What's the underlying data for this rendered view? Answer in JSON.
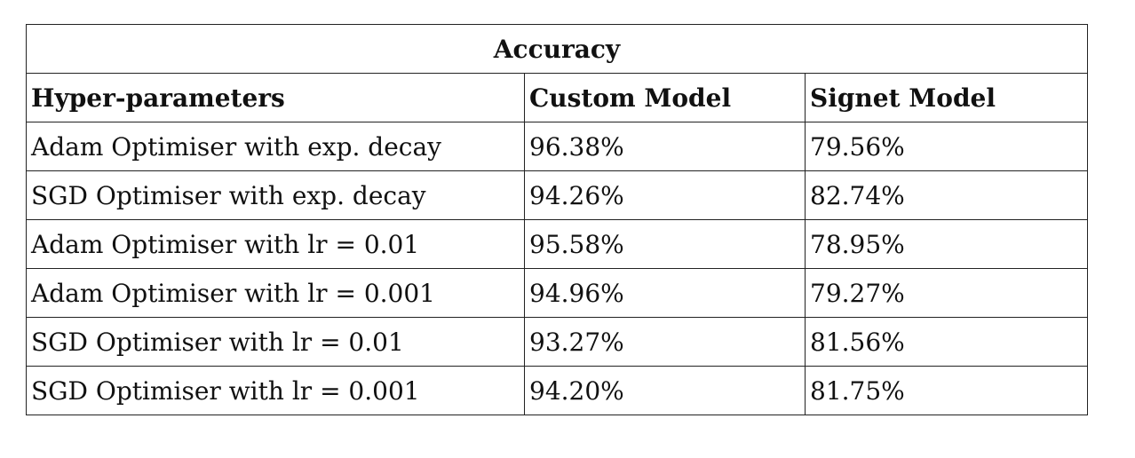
{
  "table": {
    "caption": "Accuracy",
    "headers": [
      "Hyper-parameters",
      "Custom Model",
      "Signet Model"
    ],
    "rows": [
      [
        "Adam Optimiser with exp. decay",
        "96.38%",
        "79.56%"
      ],
      [
        "SGD Optimiser with exp. decay",
        "94.26%",
        "82.74%"
      ],
      [
        "Adam Optimiser with lr = 0.01",
        "95.58%",
        "78.95%"
      ],
      [
        "Adam Optimiser with lr = 0.001",
        "94.96%",
        "79.27%"
      ],
      [
        "SGD Optimiser with lr = 0.01",
        "93.27%",
        "81.56%"
      ],
      [
        "SGD Optimiser with lr = 0.001",
        "94.20%",
        "81.75%"
      ]
    ]
  }
}
